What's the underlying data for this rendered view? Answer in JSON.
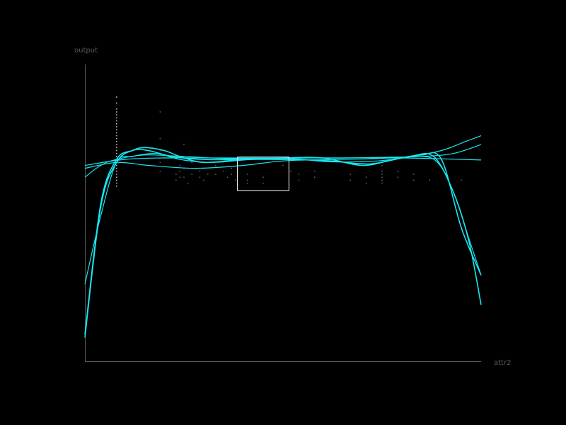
{
  "chart_data": {
    "type": "line",
    "title": "",
    "xlabel": "attr2",
    "ylabel": "output",
    "xlim": [
      0,
      100
    ],
    "ylim": [
      0,
      100
    ],
    "grid": false,
    "legend": "none",
    "colors": {
      "background": "#000000",
      "axis": "#5a5a5a",
      "curve": "#19e6f0",
      "points": "#cfcfcf",
      "selection": "#ffffff"
    },
    "series": [
      {
        "values": [
          [
            0,
            9
          ],
          [
            4,
            53
          ],
          [
            8,
            68
          ],
          [
            12,
            71
          ],
          [
            15,
            72
          ],
          [
            20,
            71
          ],
          [
            24,
            69
          ],
          [
            30,
            67
          ],
          [
            40,
            68
          ],
          [
            50,
            68.5
          ],
          [
            60,
            68.5
          ],
          [
            70,
            66
          ],
          [
            78,
            68
          ],
          [
            85,
            69.5
          ],
          [
            90,
            68
          ],
          [
            95,
            45
          ],
          [
            100,
            29
          ]
        ]
      },
      {
        "values": [
          [
            0,
            8
          ],
          [
            4,
            52
          ],
          [
            8,
            67
          ],
          [
            12,
            71
          ],
          [
            16,
            71
          ],
          [
            22,
            69
          ],
          [
            30,
            68
          ],
          [
            40,
            68
          ],
          [
            50,
            68
          ],
          [
            62,
            67.5
          ],
          [
            72,
            66.5
          ],
          [
            82,
            69
          ],
          [
            88,
            69
          ],
          [
            93,
            57
          ],
          [
            97,
            40
          ],
          [
            100,
            19
          ]
        ]
      },
      {
        "values": [
          [
            0,
            26
          ],
          [
            4,
            49
          ],
          [
            8,
            67
          ],
          [
            12,
            69
          ],
          [
            18,
            70
          ],
          [
            24,
            68
          ],
          [
            32,
            67
          ],
          [
            42,
            68
          ],
          [
            52,
            68.3
          ],
          [
            62,
            67.2
          ],
          [
            74,
            67.5
          ],
          [
            84,
            69
          ],
          [
            89,
            67
          ],
          [
            93,
            57
          ],
          [
            97,
            41
          ],
          [
            100,
            29
          ]
        ]
      },
      {
        "values": [
          [
            0,
            62
          ],
          [
            4,
            66
          ],
          [
            8,
            68
          ],
          [
            15,
            69.5
          ],
          [
            25,
            69
          ],
          [
            35,
            68.3
          ],
          [
            45,
            68.3
          ],
          [
            55,
            68.5
          ],
          [
            65,
            68.5
          ],
          [
            75,
            68.7
          ],
          [
            85,
            69
          ],
          [
            93,
            70
          ],
          [
            100,
            73
          ]
        ]
      },
      {
        "values": [
          [
            0,
            65
          ],
          [
            8,
            67
          ],
          [
            16,
            66
          ],
          [
            28,
            65
          ],
          [
            40,
            66
          ],
          [
            50,
            67.5
          ],
          [
            62,
            68
          ],
          [
            72,
            68.2
          ],
          [
            82,
            69
          ],
          [
            90,
            71
          ],
          [
            96,
            74
          ],
          [
            100,
            76
          ]
        ]
      },
      {
        "values": [
          [
            0,
            66
          ],
          [
            10,
            68
          ],
          [
            20,
            68.5
          ],
          [
            35,
            68.5
          ],
          [
            50,
            68.5
          ],
          [
            65,
            68.5
          ],
          [
            80,
            68.5
          ],
          [
            90,
            68.2
          ],
          [
            100,
            67.8
          ]
        ]
      }
    ],
    "scatter_points": [
      [
        8,
        89
      ],
      [
        8,
        87
      ],
      [
        8,
        85
      ],
      [
        8,
        84
      ],
      [
        8,
        83
      ],
      [
        8,
        82
      ],
      [
        8,
        81
      ],
      [
        8,
        80
      ],
      [
        8,
        79
      ],
      [
        8,
        78
      ],
      [
        8,
        77
      ],
      [
        8,
        76
      ],
      [
        8,
        75
      ],
      [
        8,
        74
      ],
      [
        8,
        73
      ],
      [
        8,
        72
      ],
      [
        8,
        71
      ],
      [
        8,
        70
      ],
      [
        8,
        69
      ],
      [
        8,
        68
      ],
      [
        8,
        67
      ],
      [
        8,
        66
      ],
      [
        8,
        65
      ],
      [
        8,
        64
      ],
      [
        8,
        63
      ],
      [
        8,
        62
      ],
      [
        8,
        61
      ],
      [
        8,
        60
      ],
      [
        8,
        59
      ],
      [
        19,
        84
      ],
      [
        19,
        75
      ],
      [
        19,
        71
      ],
      [
        19,
        67
      ],
      [
        19,
        64
      ],
      [
        23,
        63
      ],
      [
        23,
        61
      ],
      [
        24,
        66
      ],
      [
        24,
        64
      ],
      [
        24,
        62
      ],
      [
        25,
        73
      ],
      [
        25,
        65
      ],
      [
        25,
        62
      ],
      [
        26,
        60
      ],
      [
        27,
        67
      ],
      [
        27,
        63
      ],
      [
        29,
        64
      ],
      [
        29,
        62
      ],
      [
        30,
        65
      ],
      [
        30,
        61
      ],
      [
        31,
        63
      ],
      [
        33,
        66
      ],
      [
        33,
        63
      ],
      [
        35,
        64
      ],
      [
        36,
        62
      ],
      [
        37,
        65
      ],
      [
        37,
        63
      ],
      [
        38,
        61
      ],
      [
        41,
        63
      ],
      [
        41,
        61
      ],
      [
        41,
        60
      ],
      [
        45,
        62
      ],
      [
        45,
        60
      ],
      [
        50,
        68
      ],
      [
        50,
        66
      ],
      [
        52,
        64
      ],
      [
        54,
        63
      ],
      [
        54,
        61
      ],
      [
        58,
        64
      ],
      [
        58,
        62
      ],
      [
        67,
        63
      ],
      [
        67,
        61
      ],
      [
        71,
        62
      ],
      [
        71,
        60
      ],
      [
        75,
        66
      ],
      [
        75,
        64
      ],
      [
        75,
        63
      ],
      [
        75,
        62
      ],
      [
        75,
        61
      ],
      [
        75,
        60
      ],
      [
        79,
        64
      ],
      [
        79,
        62
      ],
      [
        83,
        63
      ],
      [
        83,
        61
      ],
      [
        87,
        61
      ],
      [
        95,
        61
      ]
    ],
    "selection_box": {
      "x": [
        38.5,
        51.5
      ],
      "y": [
        57.5,
        68.8
      ]
    }
  }
}
